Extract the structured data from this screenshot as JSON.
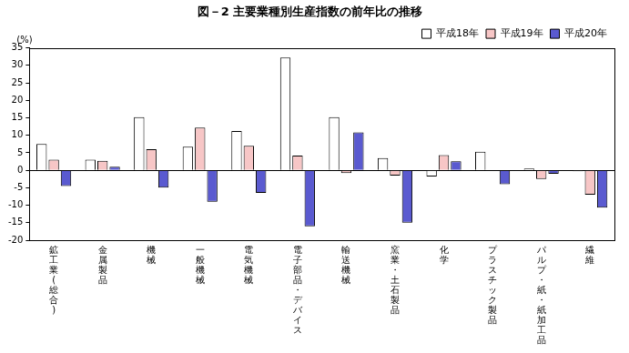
{
  "chart_data": {
    "type": "bar",
    "title": "図－2 主要業種別生産指数の前年比の推移",
    "ylabel": "(%)",
    "categories": [
      "鉱工業(総合)",
      "金属製品",
      "機械",
      "一般機械",
      "電気機械",
      "電子部品・デバイス",
      "輸送機械",
      "窯業・土石製品",
      "化学",
      "プラスチック製品",
      "パルプ・紙・紙加工品",
      "繊維"
    ],
    "series": [
      {
        "name": "平成18年",
        "color": "#ffffff",
        "values": [
          7.5,
          3.0,
          15.2,
          6.7,
          11.2,
          32.2,
          15.2,
          3.5,
          -1.8,
          5.3,
          0.5,
          -0.3
        ]
      },
      {
        "name": "平成19年",
        "color": "#f7c6c6",
        "values": [
          3.0,
          2.7,
          6.0,
          12.2,
          7.0,
          4.2,
          -0.8,
          -1.5,
          4.3,
          0.0,
          -2.5,
          -7.0
        ]
      },
      {
        "name": "平成20年",
        "color": "#5a5ad0",
        "values": [
          -4.5,
          1.0,
          -5.0,
          -9.0,
          -6.5,
          -16.0,
          10.8,
          -15.0,
          2.6,
          -4.0,
          -1.0,
          -10.7
        ]
      }
    ],
    "ylim": [
      -20,
      35
    ],
    "yticks": [
      -20,
      -15,
      -10,
      -5,
      0,
      5,
      10,
      15,
      20,
      25,
      30,
      35
    ],
    "grid": false,
    "legend": "upper right"
  }
}
